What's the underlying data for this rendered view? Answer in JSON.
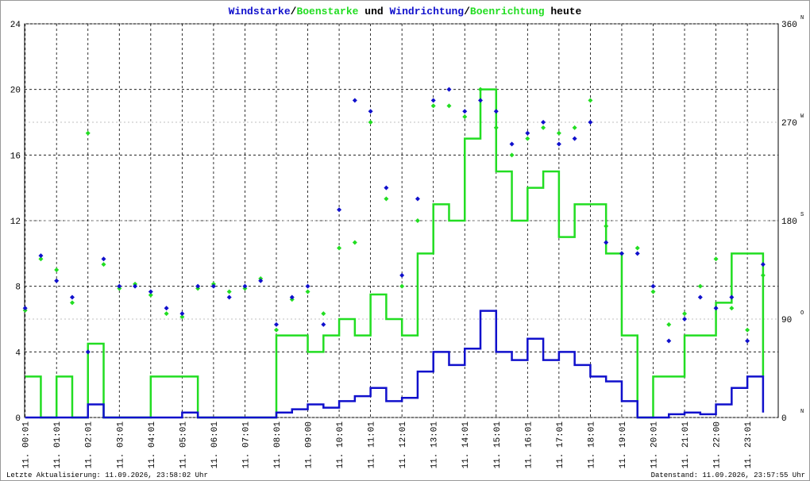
{
  "chart_data": {
    "type": "line",
    "title_parts": [
      {
        "text": "Windstarke",
        "color": "#1010cc"
      },
      {
        "text": "/",
        "color": "#000000"
      },
      {
        "text": "Boenstarke",
        "color": "#22dd22"
      },
      {
        "text": " und ",
        "color": "#000000"
      },
      {
        "text": "Windrichtung",
        "color": "#1010cc"
      },
      {
        "text": "/",
        "color": "#000000"
      },
      {
        "text": "Boenrichtung",
        "color": "#22dd22"
      },
      {
        "text": " heute",
        "color": "#000000"
      }
    ],
    "footer_left": "Letzte Aktualisierung: 11.09.2026, 23:58:02 Uhr",
    "footer_right": "Datenstand: 11.09.2026, 23:57:55 Uhr",
    "xlim": [
      0,
      1440
    ],
    "xticks": [
      {
        "value": 1,
        "label": "11. 00:01"
      },
      {
        "value": 61,
        "label": "11. 01:01"
      },
      {
        "value": 121,
        "label": "11. 02:01"
      },
      {
        "value": 181,
        "label": "11. 03:01"
      },
      {
        "value": 241,
        "label": "11. 04:01"
      },
      {
        "value": 301,
        "label": "11. 05:01"
      },
      {
        "value": 361,
        "label": "11. 06:01"
      },
      {
        "value": 421,
        "label": "11. 07:01"
      },
      {
        "value": 481,
        "label": "11. 08:01"
      },
      {
        "value": 541,
        "label": "11. 09:00"
      },
      {
        "value": 601,
        "label": "11. 10:01"
      },
      {
        "value": 661,
        "label": "11. 11:01"
      },
      {
        "value": 721,
        "label": "11. 12:01"
      },
      {
        "value": 781,
        "label": "11. 13:01"
      },
      {
        "value": 841,
        "label": "11. 14:01"
      },
      {
        "value": 901,
        "label": "11. 15:01"
      },
      {
        "value": 961,
        "label": "11. 16:01"
      },
      {
        "value": 1021,
        "label": "11. 17:01"
      },
      {
        "value": 1081,
        "label": "11. 18:01"
      },
      {
        "value": 1141,
        "label": "11. 19:01"
      },
      {
        "value": 1201,
        "label": "11. 20:01"
      },
      {
        "value": 1261,
        "label": "11. 21:01"
      },
      {
        "value": 1321,
        "label": "11. 22:00"
      },
      {
        "value": 1381,
        "label": "11. 23:01"
      }
    ],
    "ylim": [
      0,
      24
    ],
    "yticks": [
      0,
      4,
      8,
      12,
      16,
      20,
      24
    ],
    "y2lim": [
      0,
      360
    ],
    "y2ticks": [
      0,
      90,
      180,
      270,
      360
    ],
    "y2_compass": [
      "N",
      "O",
      "S",
      "W",
      "N"
    ],
    "grid": true,
    "x": [
      1,
      31,
      61,
      91,
      121,
      151,
      181,
      211,
      241,
      271,
      301,
      331,
      361,
      391,
      421,
      451,
      481,
      511,
      541,
      571,
      601,
      631,
      661,
      691,
      721,
      751,
      781,
      811,
      841,
      871,
      901,
      931,
      961,
      991,
      1021,
      1051,
      1081,
      1111,
      1141,
      1171,
      1201,
      1231,
      1261,
      1291,
      1321,
      1351,
      1381,
      1411
    ],
    "series": [
      {
        "name": "Boenstarke",
        "kind": "line",
        "color": "#22dd22",
        "values": [
          2.5,
          0,
          2.5,
          0,
          4.5,
          0,
          0,
          0,
          2.5,
          2.5,
          2.5,
          0,
          0,
          0,
          0,
          0,
          5,
          5,
          4,
          5,
          6,
          5,
          7.5,
          6,
          5,
          10,
          13,
          12,
          17,
          20,
          15,
          12,
          14,
          15,
          11,
          13,
          13,
          10,
          5,
          0,
          2.5,
          2.5,
          5,
          5,
          7,
          10,
          10,
          2.5
        ]
      },
      {
        "name": "Windstarke",
        "kind": "line",
        "color": "#1010cc",
        "values": [
          0,
          0,
          0,
          0,
          0.8,
          0,
          0,
          0,
          0,
          0,
          0.3,
          0,
          0,
          0,
          0,
          0,
          0.3,
          0.5,
          0.8,
          0.6,
          1,
          1.3,
          1.8,
          1,
          1.2,
          2.8,
          4,
          3.2,
          4.2,
          6.5,
          4,
          3.5,
          4.8,
          3.5,
          4,
          3.2,
          2.5,
          2.2,
          1,
          0,
          0,
          0.2,
          0.3,
          0.2,
          0.8,
          1.8,
          2.5,
          0.3
        ]
      },
      {
        "name": "Boenrichtung",
        "kind": "scatter",
        "axis": "y2",
        "color": "#22dd22",
        "values": [
          98,
          145,
          135,
          105,
          260,
          140,
          118,
          122,
          112,
          95,
          92,
          118,
          122,
          115,
          118,
          127,
          80,
          108,
          115,
          95,
          155,
          160,
          270,
          200,
          120,
          180,
          285,
          285,
          275,
          300,
          265,
          240,
          255,
          265,
          260,
          265,
          290,
          175,
          150,
          155,
          115,
          85,
          95,
          120,
          145,
          100,
          80,
          130
        ]
      },
      {
        "name": "Windrichtung",
        "kind": "scatter",
        "axis": "y2",
        "color": "#1010cc",
        "values": [
          100,
          148,
          125,
          110,
          60,
          145,
          120,
          120,
          115,
          100,
          95,
          120,
          120,
          110,
          120,
          125,
          85,
          110,
          120,
          85,
          190,
          290,
          280,
          210,
          130,
          200,
          290,
          300,
          280,
          290,
          280,
          250,
          260,
          270,
          250,
          255,
          270,
          160,
          150,
          150,
          120,
          70,
          90,
          110,
          100,
          110,
          70,
          140
        ]
      }
    ]
  }
}
